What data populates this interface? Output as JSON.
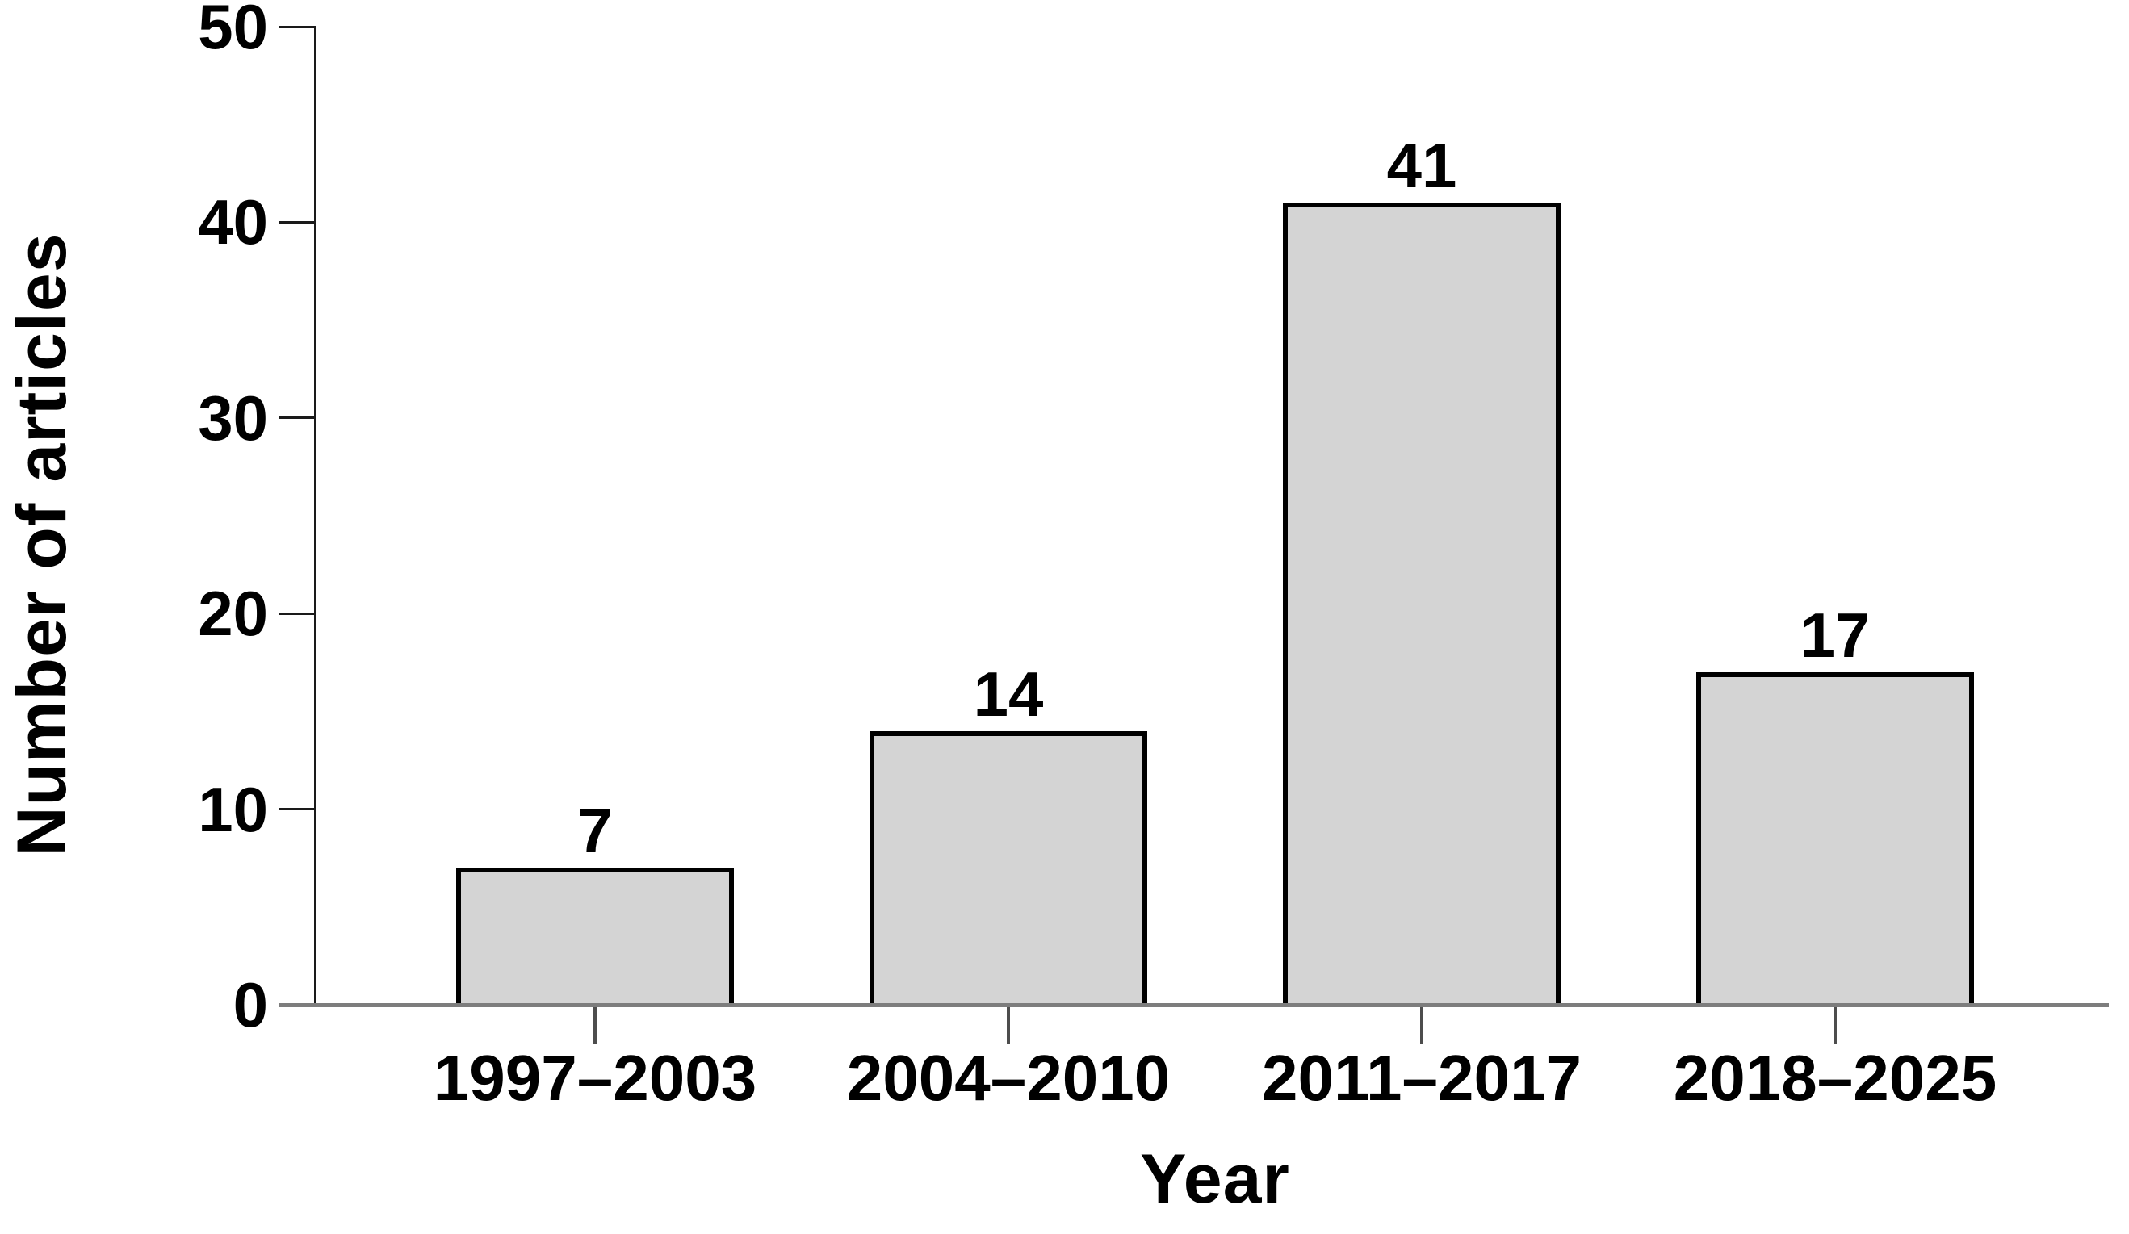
{
  "chart_data": {
    "type": "bar",
    "title": "",
    "xlabel": "Year",
    "ylabel": "Number of articles",
    "categories": [
      "1997–2003",
      "2004–2010",
      "2011–2017",
      "2018–2025"
    ],
    "values": [
      7,
      14,
      41,
      17
    ],
    "bar_value_labels": [
      "7",
      "14",
      "41",
      "17"
    ],
    "ylim": [
      0,
      50
    ],
    "yticks": [
      0,
      10,
      20,
      30,
      40,
      50
    ],
    "grid": false,
    "legend": "none",
    "colors": {
      "bar_fill": "#d4d4d4",
      "bar_border": "#000000",
      "y_axis": "#1a1a1a",
      "baseline": "#7d7d7d",
      "x_tick": "#4d4d4d",
      "text": "#000000"
    }
  }
}
